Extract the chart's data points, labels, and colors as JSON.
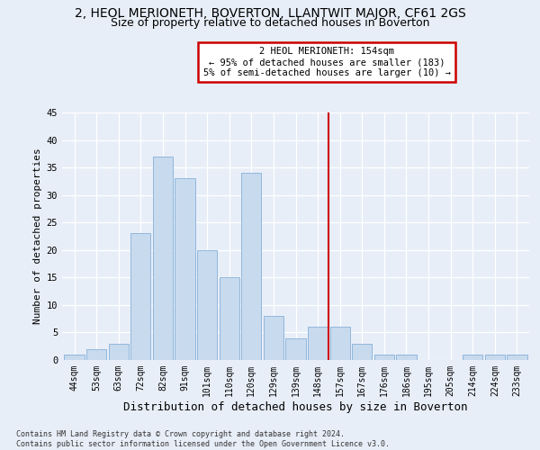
{
  "title": "2, HEOL MERIONETH, BOVERTON, LLANTWIT MAJOR, CF61 2GS",
  "subtitle": "Size of property relative to detached houses in Boverton",
  "xlabel": "Distribution of detached houses by size in Boverton",
  "ylabel": "Number of detached properties",
  "categories": [
    "44sqm",
    "53sqm",
    "63sqm",
    "72sqm",
    "82sqm",
    "91sqm",
    "101sqm",
    "110sqm",
    "120sqm",
    "129sqm",
    "139sqm",
    "148sqm",
    "157sqm",
    "167sqm",
    "176sqm",
    "186sqm",
    "195sqm",
    "205sqm",
    "214sqm",
    "224sqm",
    "233sqm"
  ],
  "values": [
    1,
    2,
    3,
    23,
    37,
    33,
    20,
    15,
    34,
    8,
    4,
    6,
    6,
    3,
    1,
    1,
    0,
    0,
    1,
    1,
    1
  ],
  "bar_color": "#c8daee",
  "bar_edge_color": "#85b0d8",
  "vline_color": "#cc0000",
  "vline_pos": 11.5,
  "annotation_text": "2 HEOL MERIONETH: 154sqm\n← 95% of detached houses are smaller (183)\n5% of semi-detached houses are larger (10) →",
  "annotation_box_edgecolor": "#cc0000",
  "ylim": [
    0,
    45
  ],
  "yticks": [
    0,
    5,
    10,
    15,
    20,
    25,
    30,
    35,
    40,
    45
  ],
  "bg_color": "#e8eef8",
  "grid_color": "#ffffff",
  "title_fontsize": 10,
  "subtitle_fontsize": 9,
  "xlabel_fontsize": 9,
  "ylabel_fontsize": 8,
  "tick_fontsize": 7,
  "annot_fontsize": 7.5,
  "footer_text": "Contains HM Land Registry data © Crown copyright and database right 2024.\nContains public sector information licensed under the Open Government Licence v3.0.",
  "footer_fontsize": 6
}
